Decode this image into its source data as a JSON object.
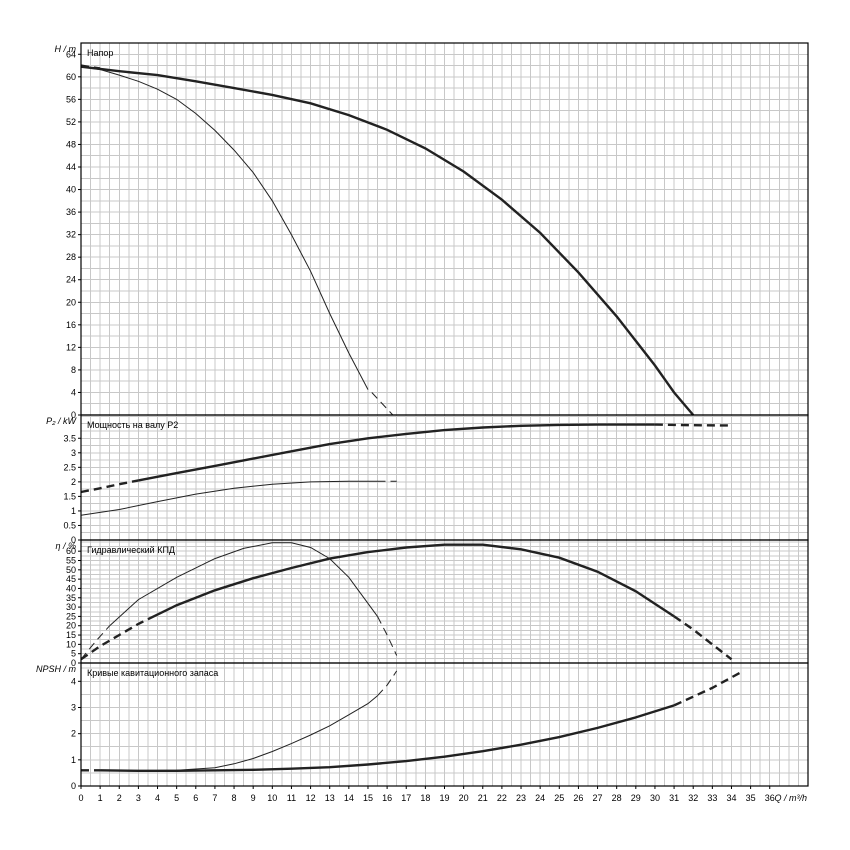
{
  "chart_data": {
    "type": "line",
    "x": {
      "label": "Q / m³/h",
      "range": [
        0,
        38
      ],
      "ticks": [
        0,
        1,
        2,
        3,
        4,
        5,
        6,
        7,
        8,
        9,
        10,
        11,
        12,
        13,
        14,
        15,
        16,
        17,
        18,
        19,
        20,
        21,
        22,
        23,
        24,
        25,
        26,
        27,
        28,
        29,
        30,
        31,
        32,
        33,
        34,
        35,
        36
      ]
    },
    "panels": [
      {
        "id": "head",
        "title": "Напор",
        "ylabel": "H / m",
        "ylim": [
          0,
          66
        ],
        "yticks": [
          0,
          4,
          8,
          12,
          16,
          20,
          24,
          28,
          32,
          36,
          40,
          44,
          48,
          52,
          56,
          60,
          64
        ],
        "series": [
          {
            "weight": "bold",
            "points": [
              [
                0,
                61.8
              ],
              [
                2,
                61
              ],
              [
                4,
                60.3
              ],
              [
                6,
                59.2
              ],
              [
                8,
                58
              ],
              [
                10,
                56.8
              ],
              [
                12,
                55.3
              ],
              [
                14,
                53.2
              ],
              [
                16,
                50.6
              ],
              [
                18,
                47.3
              ],
              [
                20,
                43.2
              ],
              [
                22,
                38.2
              ],
              [
                24,
                32.3
              ],
              [
                26,
                25.3
              ],
              [
                28,
                17.5
              ],
              [
                30,
                8.8
              ],
              [
                31,
                4
              ],
              [
                32,
                0
              ]
            ]
          },
          {
            "weight": "bold",
            "style": "dashed",
            "points": [
              [
                0,
                62
              ],
              [
                0.5,
                61.7
              ],
              [
                1,
                61.5
              ]
            ]
          },
          {
            "weight": "thin",
            "points": [
              [
                0,
                61.8
              ],
              [
                1,
                61.3
              ],
              [
                2,
                60.3
              ],
              [
                3,
                59.2
              ],
              [
                4,
                57.8
              ],
              [
                5,
                56
              ],
              [
                6,
                53.5
              ],
              [
                7,
                50.5
              ],
              [
                8,
                47
              ],
              [
                9,
                43
              ],
              [
                10,
                38
              ],
              [
                11,
                32
              ],
              [
                12,
                25.5
              ],
              [
                13,
                18
              ],
              [
                14,
                11
              ],
              [
                15,
                4.5
              ]
            ]
          },
          {
            "weight": "thin",
            "style": "dashed",
            "points": [
              [
                15.2,
                4
              ],
              [
                16.3,
                0
              ]
            ]
          }
        ]
      },
      {
        "id": "power",
        "title": "Мощность на валу P2",
        "ylabel": "P₂ / kW",
        "ylim": [
          0,
          4.3
        ],
        "yticks": [
          0,
          0.5,
          1,
          1.5,
          2,
          2.5,
          3,
          3.5
        ],
        "series": [
          {
            "weight": "bold",
            "style": "dashed",
            "points": [
              [
                0,
                1.65
              ],
              [
                1,
                1.78
              ],
              [
                2,
                1.92
              ],
              [
                3,
                2.05
              ]
            ]
          },
          {
            "weight": "bold",
            "points": [
              [
                3,
                2.05
              ],
              [
                5,
                2.3
              ],
              [
                7,
                2.55
              ],
              [
                9,
                2.8
              ],
              [
                11,
                3.05
              ],
              [
                13,
                3.3
              ],
              [
                15,
                3.5
              ],
              [
                17,
                3.65
              ],
              [
                19,
                3.78
              ],
              [
                21,
                3.87
              ],
              [
                23,
                3.93
              ],
              [
                25,
                3.96
              ],
              [
                27,
                3.97
              ],
              [
                29,
                3.97
              ],
              [
                30,
                3.97
              ]
            ]
          },
          {
            "weight": "bold",
            "style": "dashed",
            "points": [
              [
                30,
                3.97
              ],
              [
                32,
                3.95
              ],
              [
                34,
                3.94
              ]
            ]
          },
          {
            "weight": "thin",
            "points": [
              [
                0,
                0.85
              ],
              [
                2,
                1.05
              ],
              [
                4,
                1.32
              ],
              [
                6,
                1.58
              ],
              [
                8,
                1.78
              ],
              [
                10,
                1.92
              ],
              [
                12,
                2
              ],
              [
                14,
                2.02
              ],
              [
                15.5,
                2.02
              ]
            ]
          },
          {
            "weight": "thin",
            "style": "dashed",
            "points": [
              [
                15.5,
                2.02
              ],
              [
                16.5,
                2.02
              ]
            ]
          }
        ]
      },
      {
        "id": "efficiency",
        "title": "Гидравлический КПД",
        "ylabel": "η / %",
        "ylim": [
          0,
          66
        ],
        "yticks": [
          0,
          5,
          10,
          15,
          20,
          25,
          30,
          35,
          40,
          45,
          50,
          55,
          60
        ],
        "series": [
          {
            "weight": "bold",
            "style": "dashed",
            "points": [
              [
                0,
                2
              ],
              [
                1,
                9
              ],
              [
                2,
                15
              ],
              [
                3,
                21
              ],
              [
                3.5,
                23.5
              ]
            ]
          },
          {
            "weight": "bold",
            "points": [
              [
                3.5,
                23.5
              ],
              [
                5,
                31
              ],
              [
                7,
                39
              ],
              [
                9,
                45.5
              ],
              [
                11,
                51
              ],
              [
                13,
                56
              ],
              [
                15,
                59.5
              ],
              [
                17,
                62
              ],
              [
                19,
                63.5
              ],
              [
                21,
                63.5
              ],
              [
                23,
                61
              ],
              [
                25,
                56.5
              ],
              [
                27,
                49
              ],
              [
                29,
                38.5
              ],
              [
                31,
                25
              ]
            ]
          },
          {
            "weight": "bold",
            "style": "dashed",
            "points": [
              [
                31,
                25
              ],
              [
                32,
                18
              ],
              [
                33,
                10
              ],
              [
                34,
                2
              ]
            ]
          },
          {
            "weight": "thin",
            "style": "dashed",
            "points": [
              [
                0,
                2
              ],
              [
                0.8,
                12
              ],
              [
                1.5,
                20
              ]
            ]
          },
          {
            "weight": "thin",
            "points": [
              [
                1.5,
                20
              ],
              [
                3,
                34
              ],
              [
                5,
                46
              ],
              [
                7,
                56
              ],
              [
                8.5,
                61.5
              ],
              [
                10,
                64.5
              ],
              [
                11,
                64.5
              ],
              [
                12,
                62
              ],
              [
                13,
                56
              ],
              [
                14,
                46
              ],
              [
                15,
                32
              ],
              [
                15.5,
                25
              ]
            ]
          },
          {
            "weight": "thin",
            "style": "dashed",
            "points": [
              [
                15.5,
                25
              ],
              [
                16,
                15
              ],
              [
                16.5,
                4
              ]
            ]
          }
        ]
      },
      {
        "id": "npsh",
        "title": "Кривые кавитационного запаса",
        "ylabel": "NPSH / m",
        "ylim": [
          0,
          4.7
        ],
        "yticks": [
          0,
          1,
          2,
          3,
          4
        ],
        "series": [
          {
            "weight": "bold",
            "points": [
              [
                1,
                0.6
              ],
              [
                3,
                0.58
              ],
              [
                5,
                0.58
              ],
              [
                7,
                0.6
              ],
              [
                9,
                0.62
              ],
              [
                11,
                0.66
              ],
              [
                13,
                0.72
              ],
              [
                15,
                0.82
              ],
              [
                17,
                0.95
              ],
              [
                19,
                1.12
              ],
              [
                21,
                1.33
              ],
              [
                23,
                1.58
              ],
              [
                25,
                1.87
              ],
              [
                27,
                2.22
              ],
              [
                29,
                2.62
              ],
              [
                31,
                3.08
              ]
            ]
          },
          {
            "weight": "bold",
            "style": "dashed",
            "points": [
              [
                0,
                0.6
              ],
              [
                1,
                0.6
              ]
            ]
          },
          {
            "weight": "bold",
            "style": "dashed",
            "points": [
              [
                31,
                3.08
              ],
              [
                33,
                3.75
              ],
              [
                34.5,
                4.35
              ]
            ]
          },
          {
            "weight": "thin",
            "points": [
              [
                1,
                0.6
              ],
              [
                3,
                0.58
              ],
              [
                5,
                0.6
              ],
              [
                7,
                0.7
              ],
              [
                8,
                0.85
              ],
              [
                9,
                1.05
              ],
              [
                10,
                1.32
              ],
              [
                11,
                1.62
              ],
              [
                12,
                1.95
              ],
              [
                13,
                2.3
              ],
              [
                14,
                2.72
              ],
              [
                15,
                3.15
              ],
              [
                15.5,
                3.45
              ]
            ]
          },
          {
            "weight": "thin",
            "style": "dashed",
            "points": [
              [
                15.5,
                3.45
              ],
              [
                16,
                3.85
              ],
              [
                16.5,
                4.4
              ]
            ]
          }
        ]
      }
    ],
    "grid": true
  }
}
